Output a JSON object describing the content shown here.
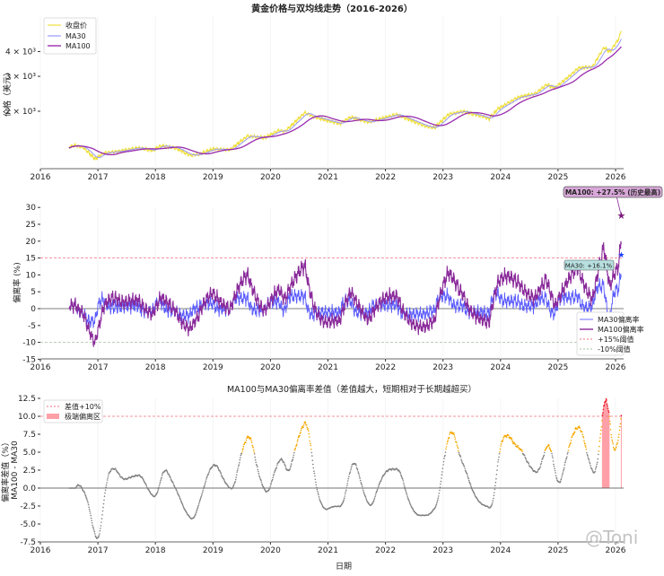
{
  "chart_data": [
    {
      "type": "line",
      "title": "黄金价格与双均线走势（2016-2026）",
      "xlabel": "",
      "ylabel": "价格（美元）",
      "yscale": "log",
      "xlim": [
        2016,
        2026.5
      ],
      "xticks": [
        "2016",
        "2017",
        "2018",
        "2019",
        "2020",
        "2021",
        "2022",
        "2023",
        "2024",
        "2025",
        "2026"
      ],
      "yticks": [
        {
          "label": "2 × 10³",
          "value": 2000
        },
        {
          "label": "3 × 10³",
          "value": 3000
        },
        {
          "label": "4 × 10³",
          "value": 4000
        }
      ],
      "legend_position": "top-left",
      "legend": [
        "收盘价",
        "MA30",
        "MA100"
      ],
      "colors": {
        "close": "#f0e040",
        "ma30": "#9a9aff",
        "ma100": "#9a2fb0"
      },
      "close_price_keypoints": {
        "x": [
          2016.5,
          2016.6,
          2016.75,
          2016.95,
          2017.1,
          2017.4,
          2017.7,
          2017.95,
          2018.1,
          2018.35,
          2018.6,
          2018.75,
          2019.0,
          2019.3,
          2019.6,
          2019.9,
          2020.15,
          2020.25,
          2020.6,
          2020.75,
          2021.2,
          2021.4,
          2021.7,
          2022.2,
          2022.7,
          2022.85,
          2023.1,
          2023.35,
          2023.7,
          2023.8,
          2023.95,
          2024.3,
          2024.6,
          2024.8,
          2024.95,
          2025.25,
          2025.35,
          2025.6,
          2025.8,
          2025.9,
          2026.05,
          2026.1
        ],
        "y": [
          1320,
          1350,
          1310,
          1150,
          1230,
          1260,
          1310,
          1270,
          1340,
          1310,
          1200,
          1210,
          1290,
          1280,
          1500,
          1470,
          1600,
          1580,
          1970,
          1880,
          1730,
          1870,
          1760,
          1930,
          1680,
          1650,
          1930,
          2000,
          1880,
          1830,
          2050,
          2350,
          2450,
          2720,
          2620,
          3100,
          3300,
          3350,
          4200,
          3980,
          4600,
          5100
        ]
      }
    },
    {
      "type": "line",
      "title": "",
      "ylabel": "偏离率 (%)",
      "ylim": [
        -15,
        30
      ],
      "yticks": [
        "-15",
        "-10",
        "-5",
        "0",
        "5",
        "10",
        "15",
        "20",
        "25",
        "30"
      ],
      "legend_position": "bottom-right",
      "legend": [
        "MA30偏离率",
        "MA100偏离率",
        "+15%阈值",
        "-10%阈值"
      ],
      "thresholds": [
        15,
        -10
      ],
      "annotations": [
        {
          "text": "MA100: +27.5% (历史最高)",
          "value": 27.5,
          "x": 2026.1
        },
        {
          "text": "MA30: +16.1%",
          "value": 16.1,
          "x": 2026.1
        }
      ]
    },
    {
      "type": "scatter",
      "title": "MA100与MA30偏离率差值（差值越大，短期相对于长期越超买）",
      "xlabel": "日期",
      "ylabel": "偏离率差值（%）",
      "ylabel2": "MA100 - MA30",
      "ylim": [
        -8.5,
        12.5
      ],
      "yticks": [
        "-7.5",
        "-5.0",
        "-2.5",
        "0.0",
        "2.5",
        "5.0",
        "7.5",
        "10.0",
        "12.5"
      ],
      "legend_position": "top-left",
      "legend": [
        "差值+10%",
        "极端偏离区"
      ],
      "threshold": 10,
      "colors": {
        "normal": "#808080",
        "elevated": "#f5a800",
        "extreme": "#e8101c",
        "zone": "#ffa0a8"
      }
    }
  ],
  "watermark": "@Toni"
}
